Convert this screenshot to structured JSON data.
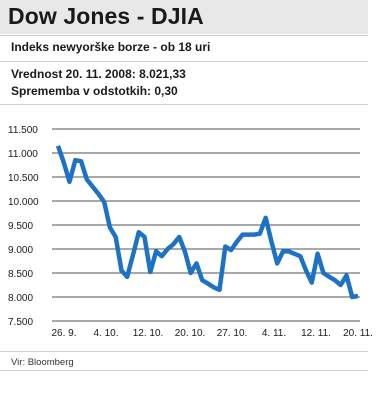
{
  "header": {
    "title": "Dow Jones - DJIA",
    "subtitle": "Indeks newyorške borze - ob 18 uri",
    "value_line": "Vrednost 20. 11. 2008: 8.021,33",
    "change_line": "Sprememba v odstotkih: 0,30"
  },
  "footer": {
    "source": "Vir: Bloomberg"
  },
  "colors": {
    "line": "#1d72c4",
    "title_bg": "#e8e8e8",
    "rule": "#cfcfcf"
  },
  "chart_data": {
    "type": "line",
    "title": "",
    "xlabel": "",
    "ylabel": "",
    "ylim": [
      7500,
      11500
    ],
    "yticks": [
      7500,
      8000,
      8500,
      9000,
      9500,
      10000,
      10500,
      11000,
      11500
    ],
    "ytick_labels": [
      "7.500",
      "8.000",
      "8.500",
      "9.000",
      "9.500",
      "10.000",
      "10.500",
      "11.000",
      "11.500"
    ],
    "xticks": [
      "26. 9.",
      "4. 10.",
      "12. 10.",
      "20. 10.",
      "27. 10.",
      "4. 11.",
      "12. 11.",
      "20. 11."
    ],
    "grid": "horizontal",
    "series": [
      {
        "values": [
          11150,
          10800,
          10400,
          10850,
          10830,
          10450,
          10300,
          10150,
          9980,
          9450,
          9250,
          8550,
          8420,
          8880,
          9350,
          9250,
          8520,
          8950,
          8850,
          9000,
          9100,
          9250,
          8950,
          8500,
          8700,
          8350,
          8280,
          8200,
          8150,
          9050,
          8980,
          9150,
          9300,
          9300,
          9300,
          9320,
          9650,
          9150,
          8700,
          8950,
          8950,
          8900,
          8850,
          8550,
          8300,
          8900,
          8500,
          8420,
          8350,
          8250,
          8450,
          8000,
          8021
        ]
      }
    ]
  }
}
